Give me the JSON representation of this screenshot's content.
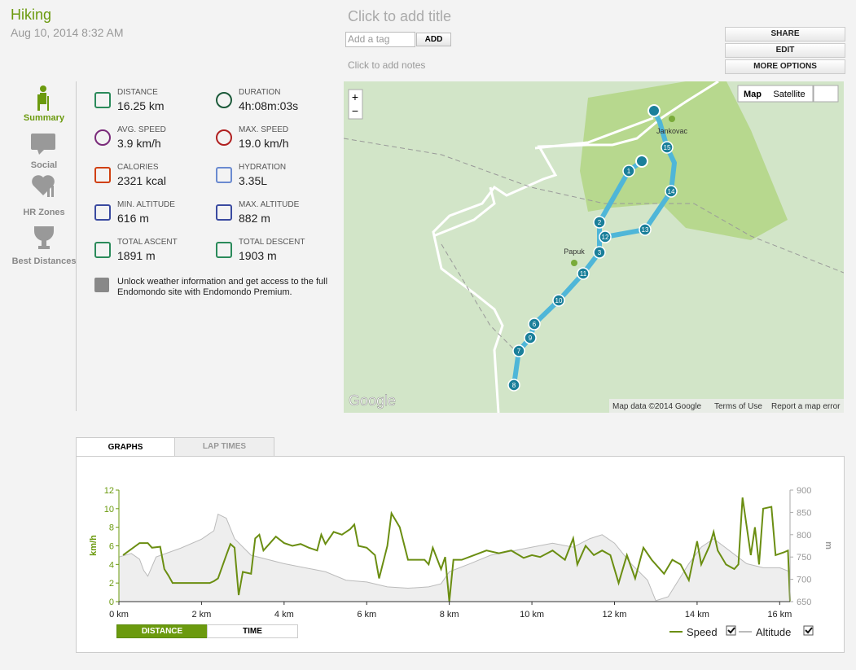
{
  "header": {
    "activity": "Hiking",
    "date": "Aug 10, 2014 8:32 AM",
    "title_placeholder": "Click to add title",
    "tag_placeholder": "Add a tag",
    "add_button": "ADD",
    "notes_placeholder": "Click to add notes",
    "buttons": [
      "SHARE",
      "EDIT",
      "MORE OPTIONS"
    ]
  },
  "sidebar": [
    "Summary",
    "Social",
    "HR Zones",
    "Best Distances"
  ],
  "stats": [
    {
      "label": "DISTANCE",
      "value": "16.25 km"
    },
    {
      "label": "DURATION",
      "value": "4h:08m:03s"
    },
    {
      "label": "AVG. SPEED",
      "value": "3.9 km/h"
    },
    {
      "label": "MAX. SPEED",
      "value": "19.0 km/h"
    },
    {
      "label": "CALORIES",
      "value": "2321 kcal"
    },
    {
      "label": "HYDRATION",
      "value": "3.35L"
    },
    {
      "label": "MIN. ALTITUDE",
      "value": "616 m"
    },
    {
      "label": "MAX. ALTITUDE",
      "value": "882 m"
    },
    {
      "label": "TOTAL ASCENT",
      "value": "1891 m"
    },
    {
      "label": "TOTAL DESCENT",
      "value": "1903 m"
    }
  ],
  "premium_note": "Unlock weather information and get access to the full Endomondo site with Endomondo Premium.",
  "map": {
    "zoom_in": "+",
    "zoom_out": "−",
    "map_types": [
      "Map",
      "Satellite"
    ],
    "places": [
      "Jankovac",
      "Papuk"
    ],
    "markers": [
      "1",
      "2",
      "3",
      "12",
      "13",
      "14",
      "15",
      "11",
      "10",
      "6",
      "9",
      "7",
      "8"
    ],
    "logo": "Google",
    "attribution": [
      "Map data ©2014 Google",
      "Terms of Use",
      "Report a map error"
    ]
  },
  "tabs": [
    "GRAPHS",
    "LAP TIMES"
  ],
  "chart_data": {
    "type": "line",
    "ylabel": "km/h",
    "y2label": "m",
    "xlim": [
      0,
      16.25
    ],
    "xticks": [
      {
        "value": 0,
        "label": "0 km"
      },
      {
        "value": 2,
        "label": "2 km"
      },
      {
        "value": 4,
        "label": "4 km"
      },
      {
        "value": 6,
        "label": "6 km"
      },
      {
        "value": 8,
        "label": "8 km"
      },
      {
        "value": 10,
        "label": "10 km"
      },
      {
        "value": 12,
        "label": "12 km"
      },
      {
        "value": 14,
        "label": "14 km"
      },
      {
        "value": 16,
        "label": "16 km"
      }
    ],
    "ylim": [
      0,
      12
    ],
    "yticks": [
      0,
      2,
      4,
      6,
      8,
      10,
      12
    ],
    "y2lim": [
      650,
      900
    ],
    "y2ticks": [
      650,
      700,
      750,
      800,
      850,
      900
    ],
    "series": [
      {
        "name": "Speed",
        "color": "#6b8e12",
        "x": [
          0.1,
          0.5,
          0.7,
          0.8,
          1.0,
          1.1,
          1.2,
          1.3,
          2.0,
          2.2,
          2.3,
          2.4,
          2.6,
          2.7,
          2.8,
          2.9,
          3.0,
          3.2,
          3.3,
          3.4,
          3.5,
          3.7,
          3.8,
          4.0,
          4.2,
          4.4,
          4.6,
          4.8,
          4.9,
          5.0,
          5.2,
          5.4,
          5.6,
          5.7,
          5.8,
          6.0,
          6.2,
          6.3,
          6.5,
          6.6,
          6.8,
          7.0,
          7.2,
          7.4,
          7.5,
          7.6,
          7.8,
          7.9,
          8.0,
          8.1,
          8.3,
          8.6,
          8.9,
          9.2,
          9.5,
          9.8,
          10.0,
          10.2,
          10.5,
          10.8,
          11.0,
          11.1,
          11.3,
          11.5,
          11.7,
          11.9,
          12.1,
          12.3,
          12.5,
          12.7,
          12.9,
          13.2,
          13.4,
          13.6,
          13.8,
          14.0,
          14.1,
          14.3,
          14.4,
          14.5,
          14.7,
          14.9,
          15.0,
          15.1,
          15.3,
          15.4,
          15.5,
          15.6,
          15.8,
          15.9,
          16.1,
          16.2,
          16.25
        ],
        "values": [
          5,
          6.3,
          6.3,
          5.8,
          5.9,
          3.5,
          2.8,
          2,
          2,
          2,
          2.2,
          2.5,
          5,
          6.2,
          5.8,
          0.7,
          3.2,
          3,
          6.8,
          7.2,
          5.5,
          6.5,
          7,
          6.3,
          6,
          6.2,
          5.8,
          5.5,
          7.2,
          6.2,
          7.5,
          7.2,
          7.8,
          8.3,
          6,
          5.8,
          5,
          2.5,
          6,
          9.5,
          8,
          4.5,
          4.5,
          4.5,
          4,
          5.8,
          3.5,
          4.8,
          0,
          4.5,
          4.5,
          5,
          5.5,
          5.2,
          5.5,
          4.7,
          5,
          4.8,
          5.5,
          4.5,
          6.8,
          4,
          6,
          5,
          5.5,
          5,
          2,
          5,
          2.5,
          5.8,
          4.5,
          3,
          4.5,
          4,
          2.3,
          6.5,
          4,
          6,
          7.5,
          5.5,
          4,
          3.5,
          4,
          11.2,
          5,
          8,
          4,
          10,
          10.2,
          5,
          5.3,
          5.5,
          0
        ]
      },
      {
        "name": "Altitude",
        "color": "#bbbbbb",
        "axis": "y2",
        "x": [
          0,
          0.3,
          0.5,
          0.6,
          0.7,
          0.9,
          1.5,
          2.0,
          2.3,
          2.4,
          2.6,
          2.8,
          3.2,
          4.0,
          5.0,
          5.5,
          6.0,
          6.5,
          7.0,
          7.5,
          7.8,
          8.0,
          8.5,
          9.0,
          9.5,
          10.0,
          10.5,
          11.0,
          11.4,
          11.7,
          12.0,
          12.4,
          12.8,
          13.0,
          13.3,
          13.8,
          14.1,
          14.4,
          14.8,
          15.2,
          15.6,
          16.0,
          16.25
        ],
        "values": [
          750,
          758,
          745,
          720,
          707,
          750,
          770,
          790,
          809,
          846,
          837,
          791,
          754,
          735,
          717,
          698,
          694,
          683,
          680,
          683,
          690,
          717,
          735,
          754,
          763,
          772,
          781,
          772,
          791,
          800,
          781,
          735,
          698,
          652,
          661,
          735,
          772,
          791,
          763,
          735,
          726,
          726,
          717
        ]
      }
    ],
    "legend": "bottom-right"
  },
  "toggle": [
    "DISTANCE",
    "TIME"
  ]
}
